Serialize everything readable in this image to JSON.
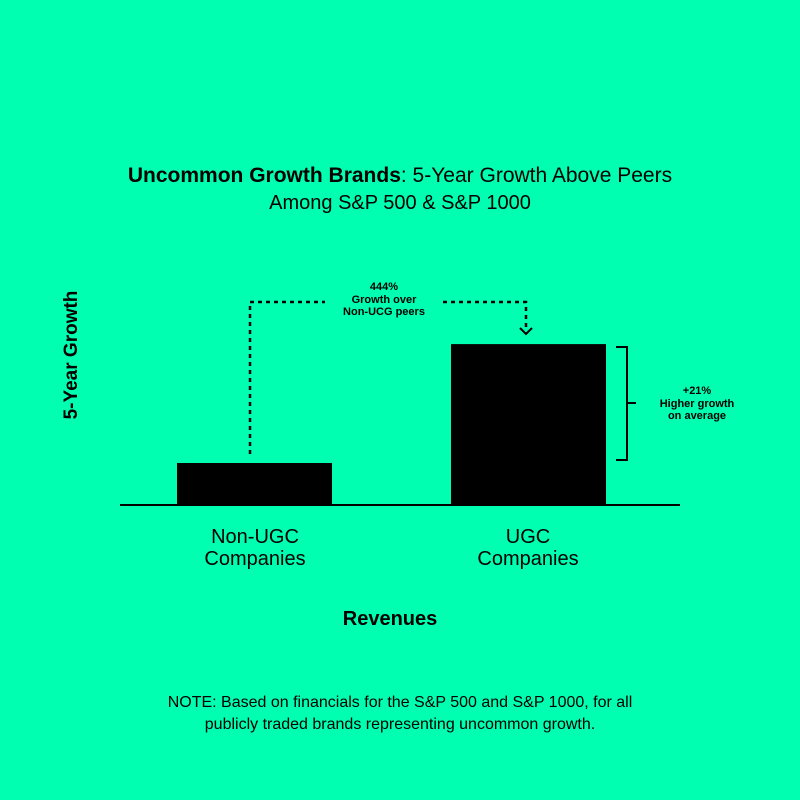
{
  "colors": {
    "background": "#00ffb0",
    "bars": "#000000"
  },
  "chart_data": {
    "type": "bar",
    "title_bold": "Uncommon Growth Brands",
    "title_rest": ": 5-Year Growth Above Peers",
    "subtitle": "Among S&P 500 & S&P 1000",
    "ylabel": "5-Year Growth",
    "xlabel": "Revenues",
    "categories": [
      [
        "Non-UGC",
        "Companies"
      ],
      [
        "UGC",
        "Companies"
      ]
    ],
    "values": [
      1,
      3.9
    ],
    "value_note": "relative, no axis values printed",
    "grid": false,
    "annotations": {
      "gap": [
        "444%",
        "Growth over",
        "Non-UCG peers"
      ],
      "bracket": [
        "+21%",
        "Higher growth",
        "on average"
      ]
    }
  },
  "note": [
    "NOTE: Based on financials for the S&P 500 and S&P 1000, for all",
    "publicly traded brands representing uncommon growth."
  ]
}
